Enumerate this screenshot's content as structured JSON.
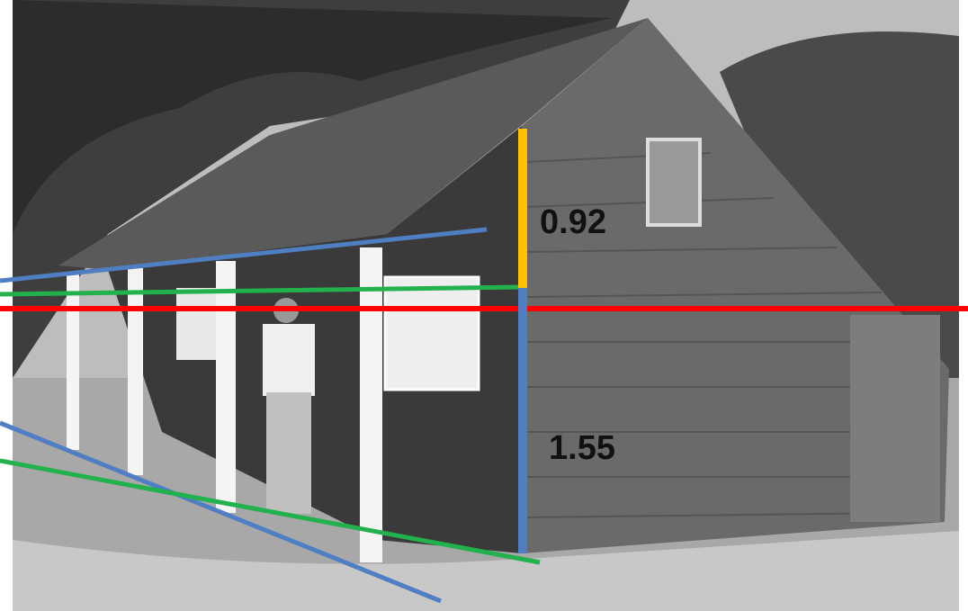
{
  "annotations": {
    "upper_height": "0.92",
    "lower_height": "1.55"
  }
}
